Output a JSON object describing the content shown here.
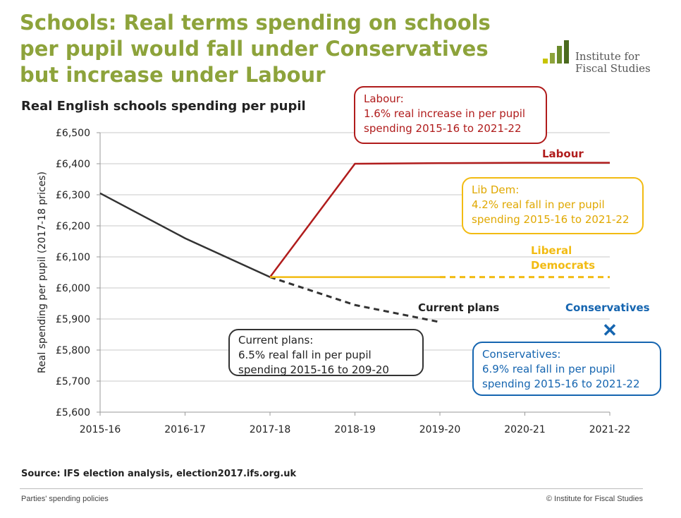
{
  "title": "Schools: Real terms spending on schools per pupil would fall under Conservatives but increase under Labour",
  "logo": {
    "line1": "Institute for",
    "line2": "Fiscal Studies",
    "colors": [
      "#c8c400",
      "#8da33b",
      "#6a8a2a",
      "#4b6a1e"
    ]
  },
  "subtitle": "Real English schools spending per pupil",
  "chart_data": {
    "type": "line",
    "title": "Real English schools spending per pupil",
    "xlabel": "",
    "ylabel": "Real spending per pupil (2017-18 prices)",
    "categories": [
      "2015-16",
      "2016-17",
      "2017-18",
      "2018-19",
      "2019-20",
      "2020-21",
      "2021-22"
    ],
    "yticks": [
      "£5,600",
      "£5,700",
      "£5,800",
      "£5,900",
      "£6,000",
      "£6,100",
      "£6,200",
      "£6,300",
      "£6,400",
      "£6,500"
    ],
    "ylim": [
      5600,
      6500
    ],
    "grid": true,
    "series": [
      {
        "name": "Current plans",
        "color": "#333333",
        "values": [
          6305,
          6160,
          6035,
          null,
          null,
          null,
          null
        ],
        "style": "solid"
      },
      {
        "name": "",
        "color": "#333333",
        "values": [
          null,
          null,
          6035,
          5945,
          5890,
          null,
          null
        ],
        "style": "dashed"
      },
      {
        "name": "Labour",
        "color": "#b01c1c",
        "values": [
          null,
          null,
          6035,
          6400,
          6402,
          6403,
          6403
        ],
        "style": "solid"
      },
      {
        "name": "Liberal Democrats",
        "color": "#f2bb12",
        "values": [
          null,
          null,
          6035,
          6035,
          6035,
          null,
          null
        ],
        "style": "solid"
      },
      {
        "name": "",
        "color": "#f2bb12",
        "values": [
          null,
          null,
          null,
          null,
          6035,
          6035,
          6035
        ],
        "style": "dashed"
      },
      {
        "name": "Conservatives",
        "color": "#1565b0",
        "values": [
          null,
          null,
          null,
          null,
          null,
          null,
          5865
        ],
        "style": "marker"
      }
    ],
    "labels": {
      "labour": "Labour",
      "libdem_line1": "Liberal",
      "libdem_line2": "Democrats",
      "current": "Current plans",
      "conservatives": "Conservatives"
    }
  },
  "callouts": {
    "labour": {
      "l1": "Labour:",
      "l2": "1.6% real increase in per pupil",
      "l3": "spending 2015-16 to 2021-22",
      "color": "#b01c1c"
    },
    "libdem": {
      "l1": "Lib Dem:",
      "l2": "4.2% real fall in per pupil",
      "l3": "spending 2015-16 to 2021-22",
      "color": "#f2bb12"
    },
    "current": {
      "l1": "Current plans:",
      "l2": "6.5% real fall in per pupil",
      "l3": "spending 2015-16 to 209-20",
      "color": "#333333"
    },
    "conservatives": {
      "l1": "Conservatives:",
      "l2": "6.9% real fall in per pupil",
      "l3": "spending 2015-16 to 2021-22",
      "color": "#1565b0"
    }
  },
  "source": "Source: IFS election analysis, election2017.ifs.org.uk",
  "footer": {
    "left": "Parties' spending policies",
    "right": "© Institute for Fiscal Studies"
  }
}
